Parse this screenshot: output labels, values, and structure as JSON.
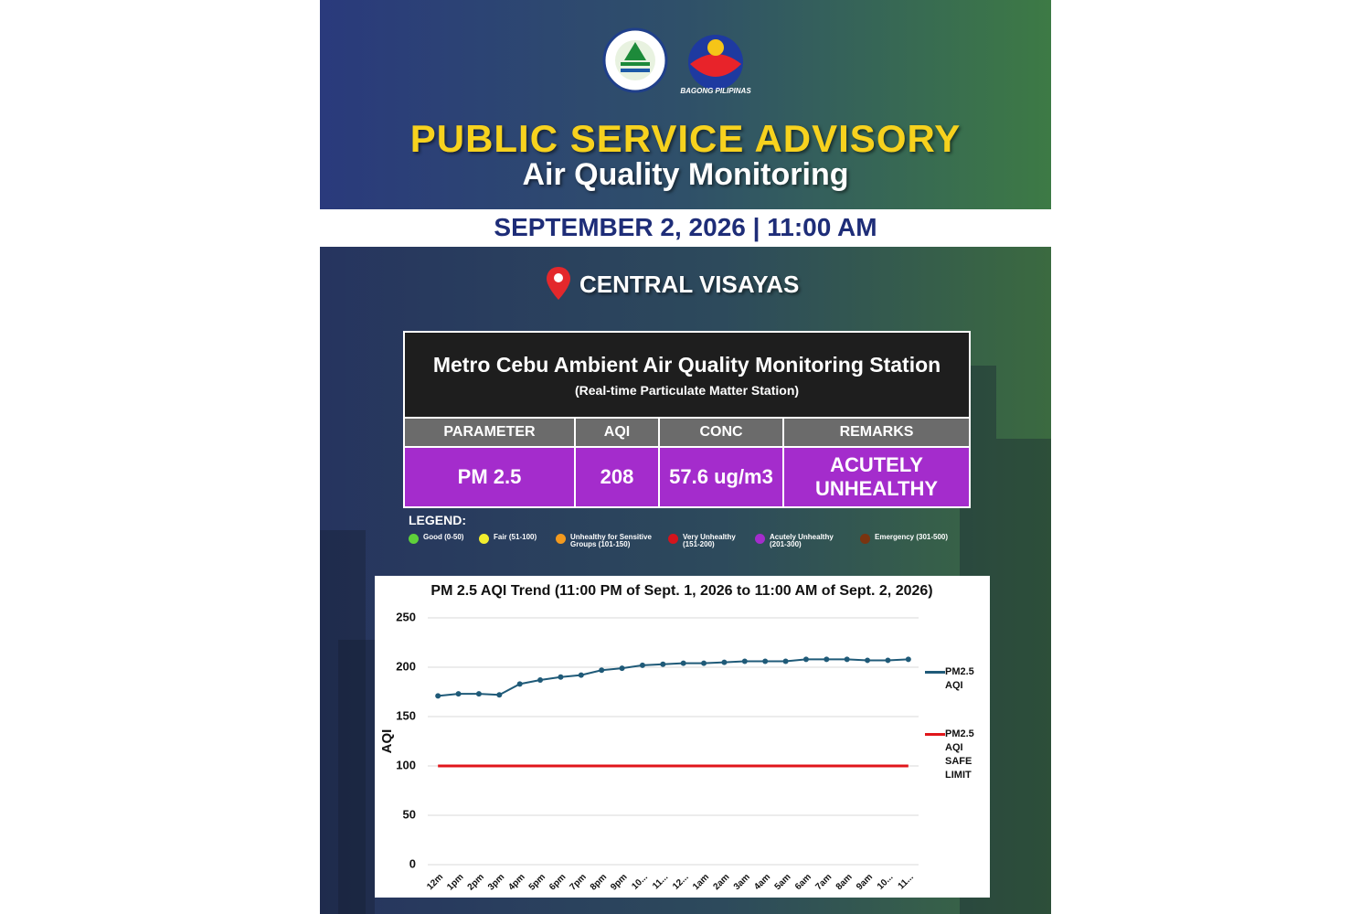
{
  "header": {
    "logo_caption": "BAGONG PILIPINAS",
    "title": "PUBLIC SERVICE ADVISORY",
    "subtitle": "Air Quality Monitoring"
  },
  "date": "SEPTEMBER 2, 2026 | 11:00 AM",
  "region": "CENTRAL VISAYAS",
  "table": {
    "title": "Metro Cebu Ambient Air Quality Monitoring Station",
    "subtitle": "(Real-time Particulate Matter Station)",
    "columns": [
      "PARAMETER",
      "AQI",
      "CONC",
      "REMARKS"
    ],
    "rows": [
      [
        "PM 2.5",
        "208",
        "57.6 ug/m3",
        "ACUTELY UNHEALTHY"
      ]
    ],
    "row_color": "#a42ccc"
  },
  "legend": {
    "title": "LEGEND:",
    "items": [
      {
        "label": "Good (0-50)",
        "color": "#5fd13a"
      },
      {
        "label": "Fair (51-100)",
        "color": "#f2ee2e"
      },
      {
        "label": "Unhealthy for Sensitive Groups (101-150)",
        "color": "#f39a1e"
      },
      {
        "label": "Very Unhealthy (151-200)",
        "color": "#d4141c"
      },
      {
        "label": "Acutely Unhealthy (201-300)",
        "color": "#a42ccc"
      },
      {
        "label": "Emergency (301-500)",
        "color": "#7a3410"
      }
    ]
  },
  "chart_data": {
    "type": "line",
    "title": "PM 2.5 AQI Trend (11:00 PM of Sept. 1, 2026 to 11:00 AM of Sept. 2, 2026)",
    "y_label": "AQI",
    "categories": [
      "12m",
      "1pm",
      "2pm",
      "3pm",
      "4pm",
      "5pm",
      "6pm",
      "7pm",
      "8pm",
      "9pm",
      "10...",
      "11...",
      "12...",
      "1am",
      "2am",
      "3am",
      "4am",
      "5am",
      "6am",
      "7am",
      "8am",
      "9am",
      "10...",
      "11..."
    ],
    "series": [
      {
        "name": "PM2.5 AQI",
        "color": "#1f5a78",
        "markers": true,
        "values": [
          171,
          173,
          173,
          172,
          183,
          187,
          190,
          192,
          197,
          199,
          202,
          203,
          204,
          204,
          205,
          206,
          206,
          206,
          208,
          208,
          208,
          207,
          207,
          208
        ]
      },
      {
        "name": "PM2.5 AQI SAFE LIMIT",
        "color": "#e0161b",
        "markers": false,
        "values": [
          100,
          100,
          100,
          100,
          100,
          100,
          100,
          100,
          100,
          100,
          100,
          100,
          100,
          100,
          100,
          100,
          100,
          100,
          100,
          100,
          100,
          100,
          100,
          100
        ]
      }
    ],
    "ylim": [
      0,
      250
    ],
    "yticks": [
      0,
      50,
      100,
      150,
      200,
      250
    ],
    "grid": true,
    "legend": "right"
  }
}
